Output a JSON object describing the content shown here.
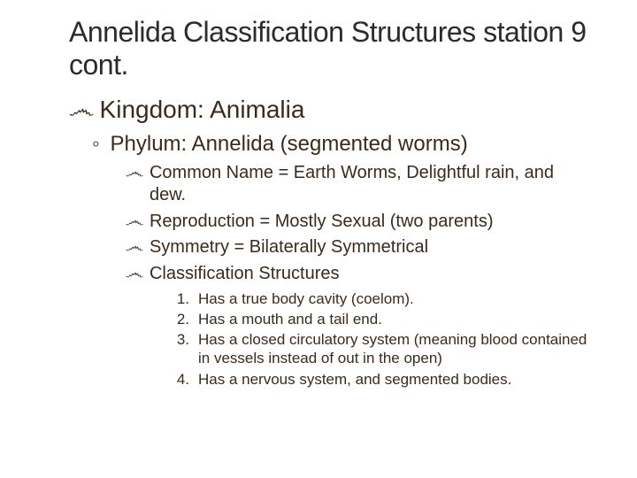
{
  "colors": {
    "text": "#3b2a1a",
    "title": "#2b2b2b",
    "background": "#ffffff"
  },
  "typography": {
    "title_size": 32,
    "lvl1_size": 28,
    "lvl2_size": 24,
    "lvl3_size": 20,
    "lvl4_size": 17,
    "family": "Arial"
  },
  "bullets": {
    "swirl": "෴",
    "ring": "◦"
  },
  "title": "Annelida Classification Structures station 9 cont.",
  "lvl1": {
    "label": "Kingdom: Animalia"
  },
  "lvl2": {
    "label": "Phylum: Annelida (segmented worms)"
  },
  "lvl3": [
    {
      "text": "Common Name = Earth Worms, Delightful rain, and dew."
    },
    {
      "text": "Reproduction = Mostly Sexual (two parents)"
    },
    {
      "text": "Symmetry = Bilaterally Symmetrical"
    },
    {
      "text": "Classification Structures"
    }
  ],
  "lvl4": [
    {
      "num": "1.",
      "text": "Has a true body cavity (coelom)."
    },
    {
      "num": "2.",
      "text": "Has a mouth and a tail end."
    },
    {
      "num": "3.",
      "text": "Has a closed circulatory system (meaning blood contained in vessels instead of out in the open)"
    },
    {
      "num": "4.",
      "text": "Has a nervous system, and segmented bodies."
    }
  ]
}
